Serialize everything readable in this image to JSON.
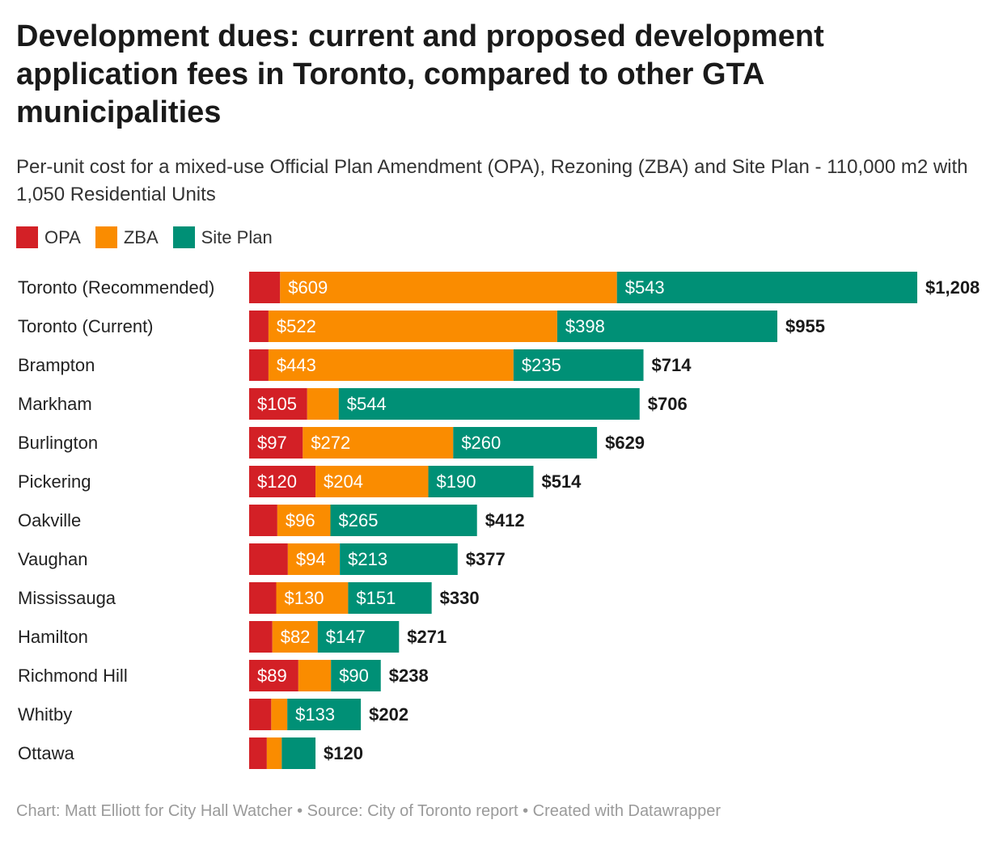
{
  "header": {
    "title": "Development dues: current and proposed development application fees in Toronto, compared to other GTA municipalities",
    "subtitle": "Per-unit cost for a mixed-use Official Plan Amendment (OPA), Rezoning (ZBA) and Site Plan - 110,000 m2 with 1,050 Residential Units"
  },
  "legend": [
    {
      "label": "OPA",
      "color": "#d32026"
    },
    {
      "label": "ZBA",
      "color": "#fa8c00"
    },
    {
      "label": "Site Plan",
      "color": "#009076"
    }
  ],
  "footer": {
    "text": "Chart: Matt Elliott for City Hall Watcher • Source: City of Toronto report • Created with Datawrapper"
  },
  "chart_data": {
    "type": "bar",
    "orientation": "horizontal",
    "stacked": true,
    "categories": [
      "Toronto (Recommended)",
      "Toronto (Current)",
      "Brampton",
      "Markham",
      "Burlington",
      "Pickering",
      "Oakville",
      "Vaughan",
      "Mississauga",
      "Hamilton",
      "Richmond Hill",
      "Whitby",
      "Ottawa"
    ],
    "series": [
      {
        "name": "OPA",
        "color": "#d32026",
        "values": [
          56,
          35,
          35,
          105,
          97,
          120,
          51,
          70,
          49,
          42,
          89,
          40,
          32
        ],
        "labels": [
          "",
          "",
          "",
          "$105",
          "$97",
          "$120",
          "",
          "",
          "",
          "",
          "$89",
          "",
          ""
        ]
      },
      {
        "name": "ZBA",
        "color": "#fa8c00",
        "values": [
          609,
          522,
          443,
          57,
          272,
          204,
          96,
          94,
          130,
          82,
          59,
          29,
          27
        ],
        "labels": [
          "$609",
          "$522",
          "$443",
          "",
          "$272",
          "$204",
          "$96",
          "$94",
          "$130",
          "$82",
          "",
          "",
          ""
        ]
      },
      {
        "name": "Site Plan",
        "color": "#009076",
        "values": [
          543,
          398,
          235,
          544,
          260,
          190,
          265,
          213,
          151,
          147,
          90,
          133,
          61
        ],
        "labels": [
          "$543",
          "$398",
          "$235",
          "$544",
          "$260",
          "$190",
          "$265",
          "$213",
          "$151",
          "$147",
          "$90",
          "$133",
          ""
        ]
      }
    ],
    "totals": [
      1208,
      955,
      714,
      706,
      629,
      514,
      412,
      377,
      330,
      271,
      238,
      202,
      120
    ],
    "total_labels": [
      "$1,208",
      "$955",
      "$714",
      "$706",
      "$629",
      "$514",
      "$412",
      "$377",
      "$330",
      "$271",
      "$238",
      "$202",
      "$120"
    ],
    "xlim": [
      0,
      1208
    ],
    "title": "Development dues: current and proposed development application fees in Toronto, compared to other GTA municipalities",
    "xlabel": "",
    "ylabel": ""
  }
}
